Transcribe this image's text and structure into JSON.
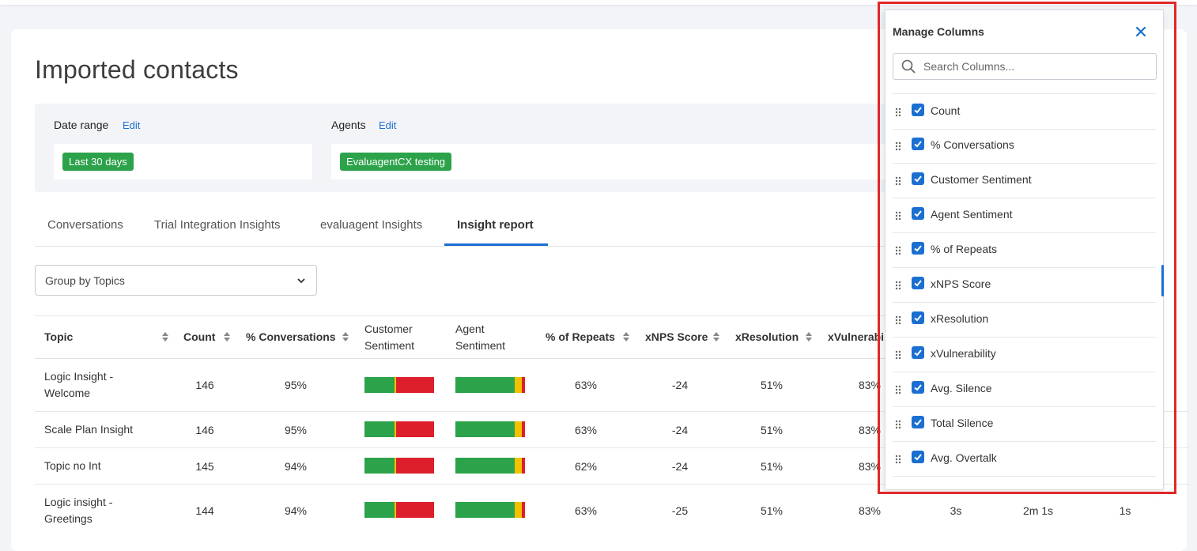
{
  "page_title": "Imported contacts",
  "filters": {
    "date_range": {
      "label": "Date range",
      "edit": "Edit",
      "chip": "Last 30 days"
    },
    "agents": {
      "label": "Agents",
      "edit": "Edit",
      "chip": "EvaluagentCX testing"
    }
  },
  "tabs": [
    "Conversations",
    "Trial Integration Insights",
    "evaluagent Insights",
    "Insight report"
  ],
  "active_tab": "Insight report",
  "group_select": {
    "value": "Group by Topics"
  },
  "table": {
    "headers": {
      "topic": "Topic",
      "count": "Count",
      "pct_conversations": "% Conversations",
      "customer_sentiment_1": "Customer",
      "customer_sentiment_2": "Sentiment",
      "agent_sentiment_1": "Agent",
      "agent_sentiment_2": "Sentiment",
      "pct_repeats": "% of Repeats",
      "xnps": "xNPS Score",
      "xresolution": "xResolution",
      "xvulnerability": "xVulnerabi"
    },
    "rows": [
      {
        "topic": "Logic Insight - Welcome",
        "count": "146",
        "pct": "95%",
        "cust": [
          0.43,
          0.02,
          0.55
        ],
        "agent": [
          0.85,
          0.1,
          0.05
        ],
        "repeats": "63%",
        "xnps": "-24",
        "xres": "51%",
        "xvul": "83%",
        "extra1": "",
        "extra2": "",
        "extra3": ""
      },
      {
        "topic": "Scale Plan Insight",
        "count": "146",
        "pct": "95%",
        "cust": [
          0.43,
          0.02,
          0.55
        ],
        "agent": [
          0.85,
          0.1,
          0.05
        ],
        "repeats": "63%",
        "xnps": "-24",
        "xres": "51%",
        "xvul": "83%",
        "extra1": "",
        "extra2": "",
        "extra3": ""
      },
      {
        "topic": "Topic no Int",
        "count": "145",
        "pct": "94%",
        "cust": [
          0.43,
          0.02,
          0.55
        ],
        "agent": [
          0.85,
          0.1,
          0.05
        ],
        "repeats": "62%",
        "xnps": "-24",
        "xres": "51%",
        "xvul": "83%",
        "extra1": "",
        "extra2": "",
        "extra3": ""
      },
      {
        "topic": "Logic insight - Greetings",
        "count": "144",
        "pct": "94%",
        "cust": [
          0.43,
          0.02,
          0.55
        ],
        "agent": [
          0.85,
          0.1,
          0.05
        ],
        "repeats": "63%",
        "xnps": "-25",
        "xres": "51%",
        "xvul": "83%",
        "extra1": "3s",
        "extra2": "2m 1s",
        "extra3": "1s"
      }
    ]
  },
  "sentiment_colors": {
    "positive": "#2ca24a",
    "neutral": "#f2c200",
    "negative": "#dd1f2b"
  },
  "manage_columns": {
    "title": "Manage Columns",
    "search_placeholder": "Search Columns...",
    "columns": [
      "Count",
      "% Conversations",
      "Customer Sentiment",
      "Agent Sentiment",
      "% of Repeats",
      "xNPS Score",
      "xResolution",
      "xVulnerability",
      "Avg. Silence",
      "Total Silence",
      "Avg. Overtalk"
    ]
  },
  "accent": "#1a6fd1",
  "highlight_color": "#e02828"
}
